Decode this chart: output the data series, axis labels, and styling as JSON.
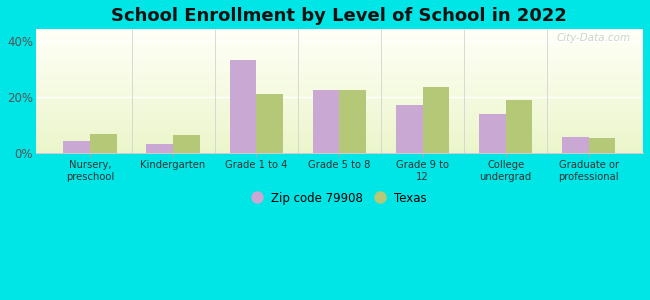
{
  "title": "School Enrollment by Level of School in 2022",
  "categories": [
    "Nursery,\npreschool",
    "Kindergarten",
    "Grade 1 to 4",
    "Grade 5 to 8",
    "Grade 9 to\n12",
    "College\nundergrad",
    "Graduate or\nprofessional"
  ],
  "zip_values": [
    4.5,
    3.5,
    33.0,
    22.5,
    17.0,
    14.0,
    6.0
  ],
  "texas_values": [
    7.0,
    6.5,
    21.0,
    22.5,
    23.5,
    19.0,
    5.5
  ],
  "zip_color": "#c9a8d4",
  "texas_color": "#b5c878",
  "ylim": [
    0,
    44
  ],
  "yticks": [
    0,
    20,
    40
  ],
  "ytick_labels": [
    "0%",
    "20%",
    "40%"
  ],
  "fig_bg_color": "#00e5e5",
  "title_fontsize": 13,
  "legend_label_zip": "Zip code 79908",
  "legend_label_texas": "Texas",
  "watermark": "City-Data.com"
}
